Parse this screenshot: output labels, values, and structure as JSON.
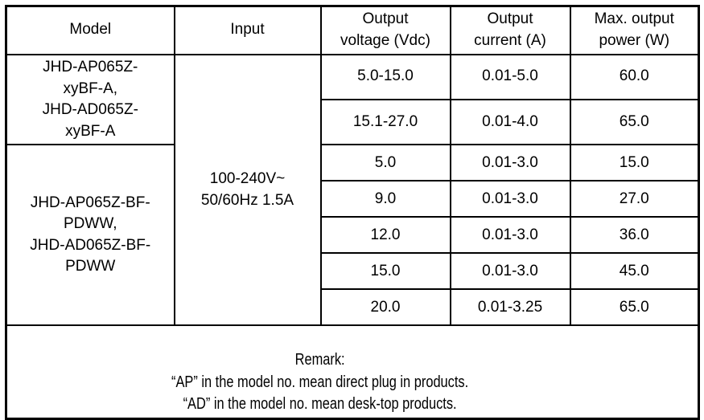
{
  "table": {
    "headers": {
      "model": "Model",
      "input": "Input",
      "voltage": "Output\nvoltage (Vdc)",
      "current": "Output\ncurrent (A)",
      "power": "Max. output\npower (W)"
    },
    "model_groups": [
      {
        "name": "JHD-AP065Z-\nxyBF-A,\nJHD-AD065Z-\nxyBF-A"
      },
      {
        "name": "JHD-AP065Z-BF-\nPDWW,\nJHD-AD065Z-BF-\nPDWW"
      }
    ],
    "input_value": "100-240V~\n50/60Hz 1.5A",
    "rows": [
      {
        "voltage": "5.0-15.0",
        "current": "0.01-5.0",
        "power": "60.0"
      },
      {
        "voltage": "15.1-27.0",
        "current": "0.01-4.0",
        "power": "65.0"
      },
      {
        "voltage": "5.0",
        "current": "0.01-3.0",
        "power": "15.0"
      },
      {
        "voltage": "9.0",
        "current": "0.01-3.0",
        "power": "27.0"
      },
      {
        "voltage": "12.0",
        "current": "0.01-3.0",
        "power": "36.0"
      },
      {
        "voltage": "15.0",
        "current": "0.01-3.0",
        "power": "45.0"
      },
      {
        "voltage": "20.0",
        "current": "0.01-3.25",
        "power": "65.0"
      }
    ],
    "remark": "Remark:\n“AP” in the model no. mean direct plug in products.\n“AD” in the model no. mean desk-top products."
  },
  "colors": {
    "border": "#000000",
    "text": "#000000",
    "background": "#ffffff"
  }
}
